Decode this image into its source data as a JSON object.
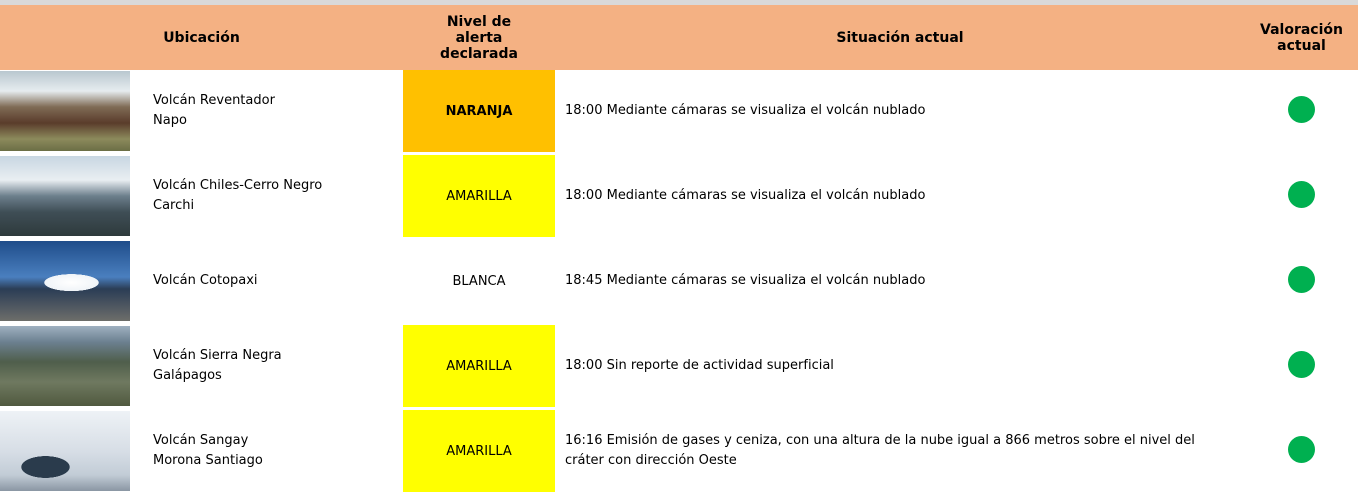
{
  "header": {
    "location": "Ubicación",
    "level": "Nivel de alerta declarada",
    "situation": "Situación actual",
    "assessment": "Valoración actual",
    "color": "#f4b183"
  },
  "rows": [
    {
      "volcano": "Volcán Reventador",
      "province": "Napo",
      "level": "NARANJA",
      "level_color": "#ffc000",
      "level_bold": true,
      "situation": "18:00 Mediante cámaras se visualiza el volcán nublado",
      "status_color": "#00b050"
    },
    {
      "volcano": "Volcán Chiles-Cerro Negro",
      "province": "Carchi",
      "level": "AMARILLA",
      "level_color": "#ffff00",
      "level_bold": false,
      "situation": "18:00 Mediante cámaras se visualiza el volcán nublado",
      "status_color": "#00b050"
    },
    {
      "volcano": "Volcán Cotopaxi",
      "province": null,
      "level": "BLANCA",
      "level_color": "#ffffff",
      "level_bold": false,
      "situation": "18:45 Mediante cámaras se visualiza el volcán nublado",
      "status_color": "#00b050"
    },
    {
      "volcano": "Volcán Sierra Negra",
      "province": "Galápagos",
      "level": "AMARILLA",
      "level_color": "#ffff00",
      "level_bold": false,
      "situation": "18:00 Sin reporte de actividad superficial",
      "status_color": "#00b050"
    },
    {
      "volcano": "Volcán Sangay",
      "province": "Morona Santiago",
      "level": "AMARILLA",
      "level_color": "#ffff00",
      "level_bold": false,
      "situation": "16:16 Emisión de gases y ceniza, con una altura de la nube igual a 866 metros sobre el nivel del cráter con dirección Oeste",
      "status_color": "#00b050"
    }
  ]
}
